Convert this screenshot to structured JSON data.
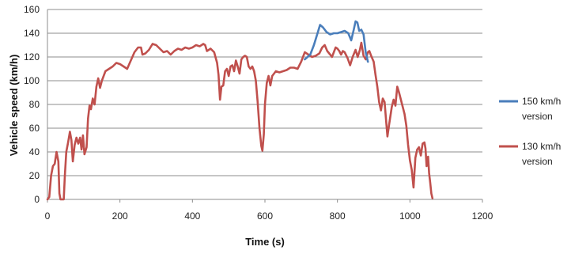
{
  "chart_data": {
    "type": "line",
    "title": "",
    "xlabel": "Time (s)",
    "ylabel": "Vehicle speed (km/h)",
    "xlim": [
      0,
      1200
    ],
    "ylim": [
      0,
      160
    ],
    "x_ticks": [
      0,
      200,
      400,
      600,
      800,
      1000,
      1200
    ],
    "y_ticks": [
      0,
      20,
      40,
      60,
      80,
      100,
      120,
      140,
      160
    ],
    "grid": "horizontal",
    "legend_position": "right",
    "series": [
      {
        "name": "150 km/h version",
        "color": "#4a7ebb",
        "points": [
          [
            710,
            118
          ],
          [
            725,
            122
          ],
          [
            735,
            130
          ],
          [
            745,
            140
          ],
          [
            752,
            147
          ],
          [
            760,
            145
          ],
          [
            770,
            141
          ],
          [
            780,
            139
          ],
          [
            790,
            140
          ],
          [
            800,
            140
          ],
          [
            810,
            141
          ],
          [
            820,
            142
          ],
          [
            830,
            140
          ],
          [
            838,
            134
          ],
          [
            845,
            143
          ],
          [
            850,
            150
          ],
          [
            855,
            149
          ],
          [
            860,
            142
          ],
          [
            866,
            143
          ],
          [
            872,
            139
          ],
          [
            878,
            124
          ],
          [
            884,
            116
          ]
        ]
      },
      {
        "name": "130 km/h version",
        "color": "#c0504d",
        "points": [
          [
            0,
            0
          ],
          [
            5,
            2
          ],
          [
            10,
            20
          ],
          [
            15,
            28
          ],
          [
            20,
            30
          ],
          [
            25,
            40
          ],
          [
            30,
            32
          ],
          [
            33,
            5
          ],
          [
            36,
            0
          ],
          [
            40,
            0
          ],
          [
            45,
            0
          ],
          [
            48,
            20
          ],
          [
            52,
            40
          ],
          [
            57,
            48
          ],
          [
            62,
            57
          ],
          [
            66,
            50
          ],
          [
            70,
            32
          ],
          [
            75,
            46
          ],
          [
            80,
            52
          ],
          [
            85,
            47
          ],
          [
            90,
            52
          ],
          [
            94,
            42
          ],
          [
            98,
            54
          ],
          [
            102,
            38
          ],
          [
            108,
            44
          ],
          [
            112,
            68
          ],
          [
            116,
            79
          ],
          [
            120,
            76
          ],
          [
            125,
            85
          ],
          [
            130,
            80
          ],
          [
            135,
            95
          ],
          [
            140,
            102
          ],
          [
            145,
            94
          ],
          [
            150,
            100
          ],
          [
            160,
            108
          ],
          [
            170,
            110
          ],
          [
            180,
            112
          ],
          [
            190,
            115
          ],
          [
            200,
            114
          ],
          [
            210,
            112
          ],
          [
            220,
            110
          ],
          [
            230,
            117
          ],
          [
            240,
            124
          ],
          [
            250,
            128
          ],
          [
            258,
            128
          ],
          [
            262,
            122
          ],
          [
            270,
            123
          ],
          [
            280,
            126
          ],
          [
            290,
            131
          ],
          [
            300,
            130
          ],
          [
            310,
            127
          ],
          [
            320,
            124
          ],
          [
            330,
            125
          ],
          [
            340,
            122
          ],
          [
            350,
            125
          ],
          [
            360,
            127
          ],
          [
            370,
            126
          ],
          [
            380,
            128
          ],
          [
            390,
            127
          ],
          [
            400,
            128
          ],
          [
            410,
            130
          ],
          [
            420,
            129
          ],
          [
            430,
            131
          ],
          [
            435,
            130
          ],
          [
            440,
            125
          ],
          [
            450,
            127
          ],
          [
            460,
            124
          ],
          [
            468,
            115
          ],
          [
            472,
            105
          ],
          [
            476,
            84
          ],
          [
            480,
            95
          ],
          [
            485,
            96
          ],
          [
            490,
            108
          ],
          [
            495,
            110
          ],
          [
            500,
            104
          ],
          [
            505,
            112
          ],
          [
            510,
            113
          ],
          [
            515,
            108
          ],
          [
            520,
            117
          ],
          [
            525,
            112
          ],
          [
            530,
            106
          ],
          [
            535,
            118
          ],
          [
            540,
            120
          ],
          [
            545,
            121
          ],
          [
            550,
            120
          ],
          [
            555,
            112
          ],
          [
            560,
            110
          ],
          [
            565,
            112
          ],
          [
            570,
            108
          ],
          [
            575,
            100
          ],
          [
            580,
            82
          ],
          [
            585,
            60
          ],
          [
            590,
            45
          ],
          [
            593,
            41
          ],
          [
            597,
            55
          ],
          [
            600,
            80
          ],
          [
            605,
            98
          ],
          [
            610,
            104
          ],
          [
            615,
            96
          ],
          [
            620,
            104
          ],
          [
            630,
            108
          ],
          [
            640,
            107
          ],
          [
            650,
            108
          ],
          [
            660,
            109
          ],
          [
            670,
            111
          ],
          [
            680,
            111
          ],
          [
            690,
            110
          ],
          [
            700,
            116
          ],
          [
            710,
            124
          ],
          [
            720,
            122
          ],
          [
            730,
            120
          ],
          [
            740,
            121
          ],
          [
            745,
            122
          ],
          [
            750,
            123
          ],
          [
            758,
            128
          ],
          [
            765,
            130
          ],
          [
            772,
            125
          ],
          [
            780,
            122
          ],
          [
            785,
            120
          ],
          [
            790,
            124
          ],
          [
            795,
            128
          ],
          [
            800,
            127
          ],
          [
            805,
            125
          ],
          [
            810,
            122
          ],
          [
            815,
            125
          ],
          [
            820,
            124
          ],
          [
            828,
            119
          ],
          [
            835,
            113
          ],
          [
            842,
            120
          ],
          [
            850,
            126
          ],
          [
            856,
            120
          ],
          [
            862,
            126
          ],
          [
            866,
            132
          ],
          [
            872,
            121
          ],
          [
            878,
            118
          ],
          [
            884,
            124
          ],
          [
            888,
            125
          ],
          [
            893,
            121
          ],
          [
            900,
            116
          ],
          [
            905,
            105
          ],
          [
            910,
            95
          ],
          [
            915,
            82
          ],
          [
            920,
            75
          ],
          [
            925,
            85
          ],
          [
            930,
            82
          ],
          [
            935,
            64
          ],
          [
            938,
            53
          ],
          [
            942,
            62
          ],
          [
            946,
            70
          ],
          [
            950,
            78
          ],
          [
            955,
            84
          ],
          [
            960,
            79
          ],
          [
            965,
            95
          ],
          [
            970,
            90
          ],
          [
            975,
            84
          ],
          [
            980,
            78
          ],
          [
            985,
            72
          ],
          [
            990,
            62
          ],
          [
            995,
            46
          ],
          [
            1000,
            33
          ],
          [
            1005,
            25
          ],
          [
            1010,
            10
          ],
          [
            1015,
            35
          ],
          [
            1020,
            42
          ],
          [
            1025,
            44
          ],
          [
            1030,
            37
          ],
          [
            1035,
            47
          ],
          [
            1040,
            48
          ],
          [
            1043,
            43
          ],
          [
            1046,
            28
          ],
          [
            1050,
            36
          ],
          [
            1053,
            22
          ],
          [
            1056,
            14
          ],
          [
            1059,
            5
          ],
          [
            1062,
            1
          ]
        ]
      }
    ]
  }
}
